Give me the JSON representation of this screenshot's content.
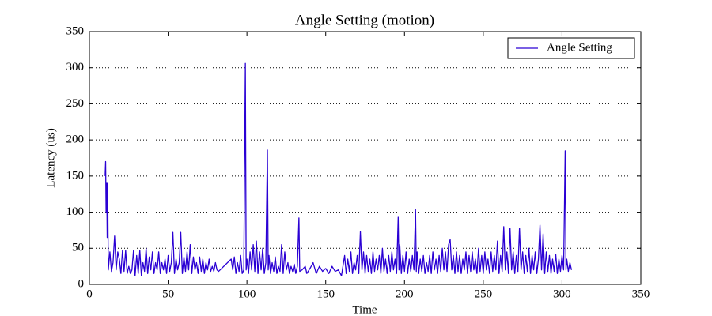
{
  "chart_data": {
    "type": "line",
    "title": "Angle Setting (motion)",
    "x_label": "Time",
    "y_label": "Latency (us)",
    "xlim": [
      0,
      350
    ],
    "ylim": [
      0,
      350
    ],
    "xticks": [
      0,
      50,
      100,
      150,
      200,
      250,
      300,
      350
    ],
    "yticks": [
      0,
      50,
      100,
      150,
      200,
      250,
      300,
      350
    ],
    "grid": "y",
    "legend": "upper right",
    "x": [
      10,
      10.3,
      10.6,
      11,
      11.3,
      11.6,
      12,
      13,
      14,
      15,
      16,
      17,
      18,
      19,
      20,
      21,
      22,
      23,
      24,
      25,
      26,
      27,
      28,
      29,
      30,
      31,
      32,
      33,
      34,
      35,
      36,
      37,
      38,
      39,
      40,
      41,
      42,
      43,
      44,
      45,
      46,
      47,
      48,
      49,
      50,
      51,
      52,
      53,
      54,
      55,
      56,
      57,
      58,
      59,
      60,
      61,
      62,
      63,
      64,
      65,
      66,
      67,
      68,
      69,
      70,
      71,
      72,
      73,
      74,
      75,
      76,
      77,
      78,
      79,
      80,
      81,
      82,
      90,
      91,
      92,
      93,
      94,
      95,
      96,
      97,
      98,
      99,
      99.5,
      100,
      101,
      102,
      103,
      104,
      105,
      106,
      107,
      108,
      109,
      110,
      111,
      112,
      113,
      113.5,
      114,
      115,
      116,
      117,
      118,
      119,
      120,
      121,
      122,
      123,
      124,
      125,
      126,
      127,
      128,
      129,
      130,
      131,
      132,
      133,
      133.5,
      135,
      137,
      138,
      140,
      142,
      144,
      146,
      148,
      150,
      152,
      154,
      156,
      158,
      160,
      162,
      163,
      164,
      165,
      166,
      167,
      168,
      169,
      170,
      171,
      172,
      173,
      174,
      175,
      176,
      177,
      178,
      179,
      180,
      181,
      182,
      183,
      184,
      185,
      186,
      187,
      188,
      189,
      190,
      191,
      192,
      193,
      194,
      195,
      196,
      196.5,
      197,
      198,
      199,
      200,
      201,
      202,
      203,
      204,
      205,
      206,
      207,
      207.5,
      208,
      209,
      210,
      211,
      212,
      213,
      214,
      215,
      216,
      217,
      218,
      219,
      220,
      221,
      222,
      223,
      224,
      225,
      226,
      227,
      228,
      229,
      230,
      231,
      232,
      233,
      234,
      235,
      236,
      237,
      238,
      239,
      240,
      241,
      242,
      243,
      244,
      245,
      246,
      247,
      248,
      249,
      250,
      251,
      252,
      253,
      254,
      255,
      256,
      257,
      258,
      259,
      260,
      261,
      262,
      263,
      264,
      265,
      266,
      267,
      268,
      269,
      270,
      271,
      272,
      273,
      274,
      275,
      276,
      277,
      278,
      279,
      280,
      281,
      282,
      283,
      284,
      285,
      286,
      287,
      288,
      289,
      290,
      291,
      292,
      293,
      294,
      295,
      296,
      297,
      298,
      299,
      300,
      301,
      302,
      302.5,
      303,
      304,
      305,
      306
    ],
    "series": [
      {
        "name": "Angle Setting",
        "color": "#2a00d4",
        "values": [
          150,
          170,
          100,
          140,
          65,
          140,
          20,
          45,
          18,
          30,
          67,
          20,
          45,
          35,
          15,
          47,
          18,
          47,
          15,
          25,
          15,
          20,
          47,
          12,
          40,
          15,
          47,
          12,
          30,
          18,
          50,
          15,
          38,
          20,
          45,
          15,
          30,
          20,
          45,
          15,
          30,
          20,
          35,
          15,
          40,
          18,
          30,
          72,
          15,
          35,
          20,
          30,
          72,
          15,
          38,
          18,
          45,
          20,
          55,
          15,
          38,
          20,
          30,
          15,
          38,
          18,
          35,
          15,
          30,
          20,
          35,
          18,
          25,
          18,
          30,
          20,
          18,
          35,
          20,
          38,
          15,
          30,
          18,
          40,
          15,
          20,
          306,
          20,
          35,
          15,
          45,
          20,
          55,
          18,
          60,
          15,
          45,
          20,
          50,
          15,
          30,
          186,
          20,
          40,
          15,
          30,
          18,
          38,
          15,
          25,
          18,
          55,
          15,
          45,
          20,
          30,
          15,
          25,
          18,
          28,
          15,
          25,
          92,
          18,
          20,
          25,
          15,
          22,
          30,
          15,
          25,
          18,
          22,
          15,
          25,
          18,
          20,
          12,
          40,
          15,
          35,
          18,
          45,
          15,
          30,
          20,
          40,
          15,
          73,
          20,
          45,
          15,
          40,
          18,
          35,
          15,
          45,
          18,
          35,
          20,
          40,
          15,
          50,
          18,
          35,
          15,
          40,
          18,
          45,
          20,
          35,
          15,
          93,
          20,
          55,
          15,
          40,
          18,
          45,
          15,
          35,
          18,
          40,
          20,
          104,
          18,
          45,
          15,
          35,
          18,
          40,
          15,
          30,
          18,
          40,
          15,
          45,
          20,
          35,
          15,
          40,
          18,
          50,
          20,
          45,
          18,
          55,
          62,
          20,
          40,
          15,
          45,
          18,
          40,
          15,
          35,
          20,
          45,
          15,
          40,
          18,
          45,
          20,
          35,
          15,
          50,
          18,
          40,
          15,
          45,
          20,
          35,
          15,
          45,
          18,
          40,
          20,
          60,
          15,
          40,
          18,
          80,
          20,
          45,
          15,
          78,
          20,
          45,
          15,
          40,
          18,
          78,
          20,
          45,
          15,
          40,
          18,
          50,
          15,
          40,
          20,
          45,
          15,
          35,
          82,
          20,
          70,
          15,
          45,
          18,
          40,
          15,
          35,
          18,
          42,
          15,
          35,
          18,
          40,
          20,
          185,
          20,
          35,
          18,
          30,
          20
        ]
      }
    ]
  }
}
